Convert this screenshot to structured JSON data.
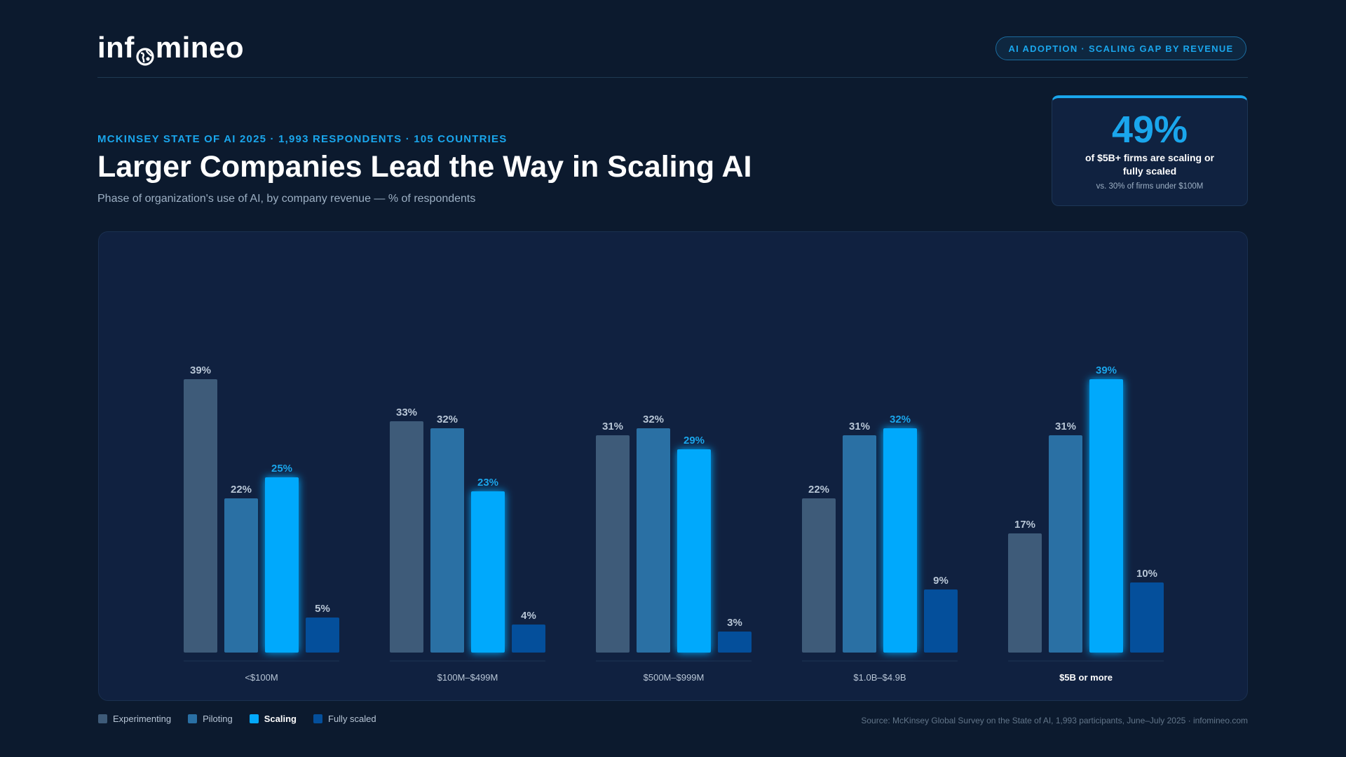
{
  "header": {
    "logo_text_left": "inf",
    "logo_text_right": "mineo",
    "tag": "AI ADOPTION · SCALING GAP BY REVENUE"
  },
  "kicker": "MCKINSEY STATE OF AI 2025 · 1,993 RESPONDENTS · 105 COUNTRIES",
  "title": "Larger Companies Lead the Way in Scaling AI",
  "subtitle": "Phase of organization's use of AI, by company revenue — % of respondents",
  "stat": {
    "value": "49%",
    "label": "of $5B+ firms are scaling or fully scaled",
    "note": "vs. 30% of firms under $100M"
  },
  "chart_data": {
    "type": "bar",
    "categories": [
      "<$100M",
      "$100M–$499M",
      "$500M–$999M",
      "$1.0B–$4.9B",
      "$5B or more"
    ],
    "highlight_category": "$5B or more",
    "series": [
      {
        "name": "Experimenting",
        "color": "#3e5b79",
        "values": [
          39,
          33,
          31,
          22,
          17
        ]
      },
      {
        "name": "Piloting",
        "color": "#2a70a4",
        "values": [
          22,
          32,
          32,
          31,
          31
        ]
      },
      {
        "name": "Scaling",
        "color": "#03a9fc",
        "values": [
          25,
          23,
          29,
          32,
          39
        ],
        "emphasis": true
      },
      {
        "name": "Fully scaled",
        "color": "#044f9b",
        "values": [
          5,
          4,
          3,
          9,
          10
        ]
      }
    ],
    "value_suffix": "%",
    "ylim": [
      0,
      39
    ],
    "grid": false,
    "legend": "bottom-left"
  },
  "colors": {
    "accent": "#1aa6ec",
    "label_default": "#b8c6d6",
    "label_emphasis": "#1aa6ec"
  },
  "source": "Source: McKinsey Global Survey on the State of AI, 1,993 participants, June–July 2025 · infomineo.com"
}
